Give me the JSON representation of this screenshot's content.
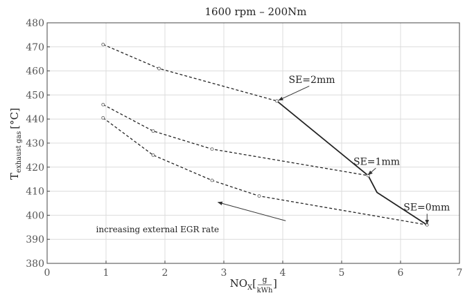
{
  "chart_data": {
    "type": "line",
    "title": "1600 rpm – 200Nm",
    "xlabel": {
      "main": "NO",
      "sub": "X",
      "unit_num": "g",
      "unit_den": "kWh"
    },
    "ylabel": {
      "main": "T",
      "sub": "exhaust gas",
      "unit": "[°C]"
    },
    "xlim": [
      0,
      7
    ],
    "ylim": [
      380,
      480
    ],
    "xticks": [
      0,
      1,
      2,
      3,
      4,
      5,
      6,
      7
    ],
    "yticks": [
      380,
      390,
      400,
      410,
      420,
      430,
      440,
      450,
      460,
      470,
      480
    ],
    "grid": true,
    "series": [
      {
        "style": "dashed",
        "x": [
          0.95,
          1.9,
          3.9
        ],
        "y": [
          471,
          461,
          447.5
        ]
      },
      {
        "style": "dashed",
        "x": [
          0.95,
          1.8,
          2.8,
          5.45
        ],
        "y": [
          446,
          435,
          427.5,
          416.5
        ]
      },
      {
        "style": "dashed",
        "x": [
          0.95,
          1.8,
          2.8,
          3.6,
          6.45
        ],
        "y": [
          440.5,
          425,
          414.5,
          408,
          396
        ]
      },
      {
        "style": "solid",
        "x": [
          3.9,
          5.45,
          5.6,
          6.45
        ],
        "y": [
          447.5,
          416.5,
          409.5,
          396
        ]
      }
    ],
    "annotations": [
      {
        "text": "SE=2mm",
        "x": 4.1,
        "y": 455,
        "arrow_to": [
          3.93,
          447.8
        ]
      },
      {
        "text": "SE=1mm",
        "x": 5.2,
        "y": 421,
        "arrow_to": [
          5.45,
          416.8
        ]
      },
      {
        "text": "SE=0mm",
        "x": 6.05,
        "y": 402,
        "arrow_to": [
          6.45,
          396.3
        ]
      },
      {
        "text": "increasing  external  EGR rate",
        "x": 0.83,
        "y": 393,
        "arrow_from": [
          4.05,
          397.7
        ],
        "arrow_to": [
          2.9,
          405.4
        ]
      }
    ]
  }
}
